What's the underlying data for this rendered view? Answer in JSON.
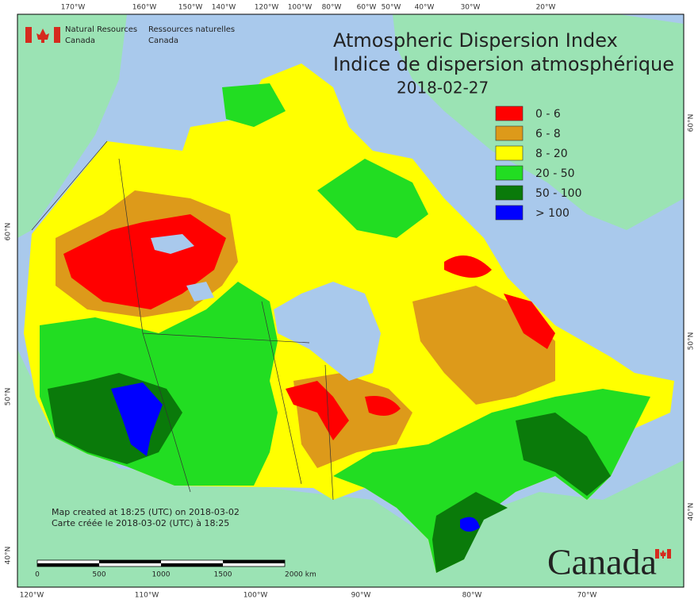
{
  "header": {
    "agency_en": [
      "Natural Resources",
      "Canada"
    ],
    "agency_fr": [
      "Ressources naturelles",
      "Canada"
    ]
  },
  "title": {
    "line1": "Atmospheric Dispersion Index",
    "line2": "Indice de dispersion atmosphérique",
    "date": "2018-02-27"
  },
  "legend": [
    {
      "label": "0 - 6",
      "color": "#ff0000"
    },
    {
      "label": "6 - 8",
      "color": "#dd9a1a"
    },
    {
      "label": "8 - 20",
      "color": "#ffff00"
    },
    {
      "label": "20 - 50",
      "color": "#22dd22"
    },
    {
      "label": "50 - 100",
      "color": "#0a7a0a"
    },
    {
      "label": "> 100",
      "color": "#0000ff"
    }
  ],
  "graticule": {
    "top": [
      "170°W",
      "160°W",
      "150°W",
      "140°W",
      "120°W",
      "100°W",
      "80°W",
      "60°W",
      "50°W",
      "40°W",
      "30°W",
      "20°W"
    ],
    "bottom": [
      "120°W",
      "110°W",
      "100°W",
      "90°W",
      "80°W",
      "70°W"
    ],
    "left": [
      "60°N",
      "50°N",
      "40°N"
    ],
    "right": [
      "60°N",
      "50°N",
      "40°N"
    ]
  },
  "footer": {
    "created_en": "Map created at 18:25 (UTC) on 2018-03-02",
    "created_fr": "Carte créée le 2018-03-02 (UTC) à 18:25"
  },
  "scale_bar": {
    "labels": [
      "0",
      "500",
      "1000",
      "1500",
      "2000 km"
    ]
  },
  "wordmark": "Canada"
}
